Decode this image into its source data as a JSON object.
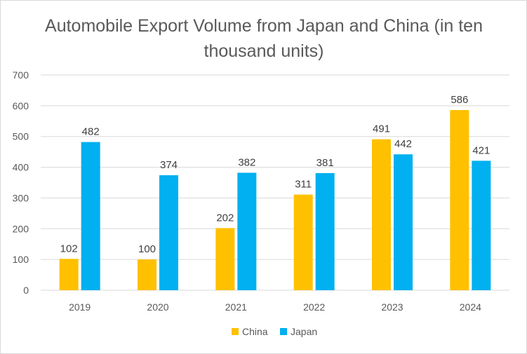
{
  "chart_data": {
    "type": "bar",
    "title": "Automobile Export Volume from Japan and China (in ten thousand units)",
    "xlabel": "",
    "ylabel": "",
    "categories": [
      "2019",
      "2020",
      "2021",
      "2022",
      "2023",
      "2024"
    ],
    "series": [
      {
        "name": "China",
        "values": [
          102,
          100,
          202,
          311,
          491,
          586
        ],
        "color": "#FFC000"
      },
      {
        "name": "Japan",
        "values": [
          482,
          374,
          382,
          381,
          442,
          421
        ],
        "color": "#00B0F0"
      }
    ],
    "ylim": [
      0,
      700
    ],
    "yticks": [
      0,
      100,
      200,
      300,
      400,
      500,
      600,
      700
    ],
    "grid": "horizontal",
    "data_labels": true,
    "legend_position": "bottom"
  }
}
